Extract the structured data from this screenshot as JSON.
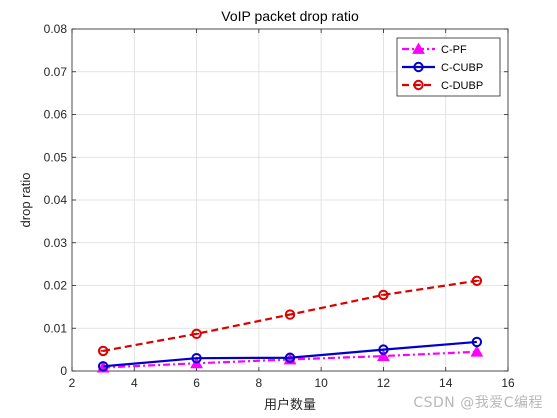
{
  "chart_data": {
    "type": "line",
    "title": "VoIP packet drop ratio",
    "xlabel": "用户数量",
    "ylabel": "drop ratio",
    "xlim": [
      2,
      16
    ],
    "ylim": [
      0,
      0.08
    ],
    "xticks": [
      2,
      4,
      6,
      8,
      10,
      12,
      14,
      16
    ],
    "yticks": [
      0,
      0.01,
      0.02,
      0.03,
      0.04,
      0.05,
      0.06,
      0.07,
      0.08
    ],
    "xtick_labels": [
      "2",
      "4",
      "6",
      "8",
      "10",
      "12",
      "14",
      "16"
    ],
    "ytick_labels": [
      "0",
      "0.01",
      "0.02",
      "0.03",
      "0.04",
      "0.05",
      "0.06",
      "0.07",
      "0.08"
    ],
    "grid": true,
    "legend_position": "top-right",
    "x": [
      3,
      6,
      9,
      12,
      15
    ],
    "series": [
      {
        "name": "C-PF",
        "values": [
          0.0008,
          0.0018,
          0.0027,
          0.0035,
          0.0045
        ],
        "color": "#ff00ff",
        "line_style": "dash-dot",
        "marker": "triangle"
      },
      {
        "name": "C-CUBP",
        "values": [
          0.0011,
          0.003,
          0.0031,
          0.005,
          0.0068
        ],
        "color": "#0000cc",
        "line_style": "solid",
        "marker": "circle"
      },
      {
        "name": "C-DUBP",
        "values": [
          0.0047,
          0.0087,
          0.0132,
          0.0178,
          0.0211
        ],
        "color": "#dd0000",
        "line_style": "dashed",
        "marker": "circle-dot"
      }
    ]
  },
  "watermark": "CSDN @我爱C编程"
}
